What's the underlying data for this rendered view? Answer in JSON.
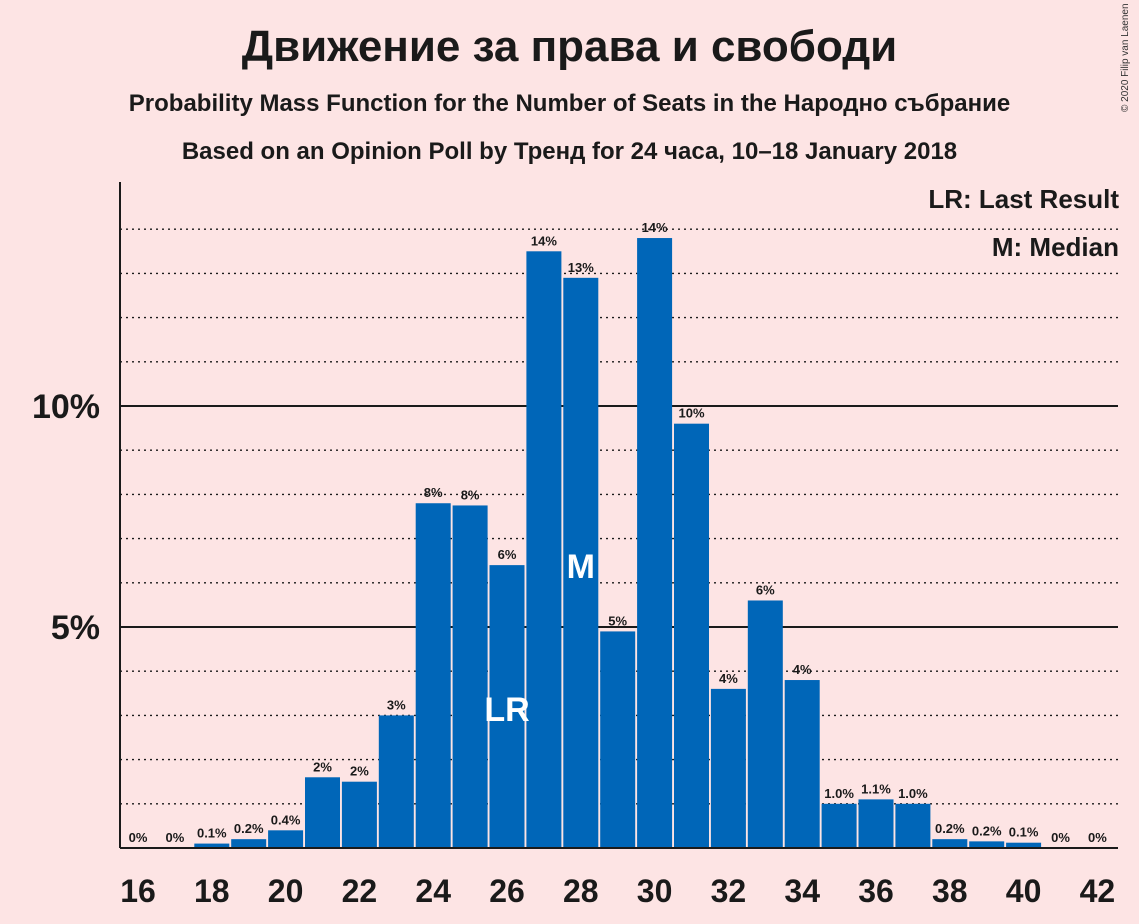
{
  "title": "Движение за права и свободи",
  "subtitle1": "Probability Mass Function for the Number of Seats in the Народно събрание",
  "subtitle2": "Based on an Opinion Poll by Тренд for 24 часа, 10–18 January 2018",
  "copyright": "© 2020 Filip van Laenen",
  "legend": {
    "last_result": "LR: Last Result",
    "median": "M: Median"
  },
  "colors": {
    "background": "#fde4e4",
    "bar": "#0066b8",
    "text": "#1a1a1a"
  },
  "chart_data": {
    "type": "bar",
    "xlim": [
      16,
      42
    ],
    "ylim": [
      0,
      15
    ],
    "x_ticks": [
      "16",
      "18",
      "20",
      "22",
      "24",
      "26",
      "28",
      "30",
      "32",
      "34",
      "36",
      "38",
      "40",
      "42"
    ],
    "y_ticks": [
      {
        "value": 5,
        "label": "5%"
      },
      {
        "value": 10,
        "label": "10%"
      }
    ],
    "grid": "dotted every 1%, solid at 5% and 10%",
    "last_result_seat": 26,
    "last_result_marker": "LR",
    "median_seat": 28,
    "median_marker": "M",
    "bars": [
      {
        "seat": 16,
        "value": 0.0,
        "label": "0%"
      },
      {
        "seat": 17,
        "value": 0.0,
        "label": "0%"
      },
      {
        "seat": 18,
        "value": 0.1,
        "label": "0.1%"
      },
      {
        "seat": 19,
        "value": 0.2,
        "label": "0.2%"
      },
      {
        "seat": 20,
        "value": 0.4,
        "label": "0.4%"
      },
      {
        "seat": 21,
        "value": 1.6,
        "label": "2%"
      },
      {
        "seat": 22,
        "value": 1.5,
        "label": "2%"
      },
      {
        "seat": 23,
        "value": 3.0,
        "label": "3%"
      },
      {
        "seat": 24,
        "value": 7.8,
        "label": "8%"
      },
      {
        "seat": 25,
        "value": 7.75,
        "label": "8%"
      },
      {
        "seat": 26,
        "value": 6.4,
        "label": "6%"
      },
      {
        "seat": 27,
        "value": 13.5,
        "label": "14%"
      },
      {
        "seat": 28,
        "value": 12.9,
        "label": "13%"
      },
      {
        "seat": 29,
        "value": 4.9,
        "label": "5%"
      },
      {
        "seat": 30,
        "value": 13.8,
        "label": "14%"
      },
      {
        "seat": 31,
        "value": 9.6,
        "label": "10%"
      },
      {
        "seat": 32,
        "value": 3.6,
        "label": "4%"
      },
      {
        "seat": 33,
        "value": 5.6,
        "label": "6%"
      },
      {
        "seat": 34,
        "value": 3.8,
        "label": "4%"
      },
      {
        "seat": 35,
        "value": 1.0,
        "label": "1.0%"
      },
      {
        "seat": 36,
        "value": 1.1,
        "label": "1.1%"
      },
      {
        "seat": 37,
        "value": 1.0,
        "label": "1.0%"
      },
      {
        "seat": 38,
        "value": 0.2,
        "label": "0.2%"
      },
      {
        "seat": 39,
        "value": 0.15,
        "label": "0.2%"
      },
      {
        "seat": 40,
        "value": 0.12,
        "label": "0.1%"
      },
      {
        "seat": 41,
        "value": 0.0,
        "label": "0%"
      },
      {
        "seat": 42,
        "value": 0.0,
        "label": "0%"
      }
    ]
  }
}
